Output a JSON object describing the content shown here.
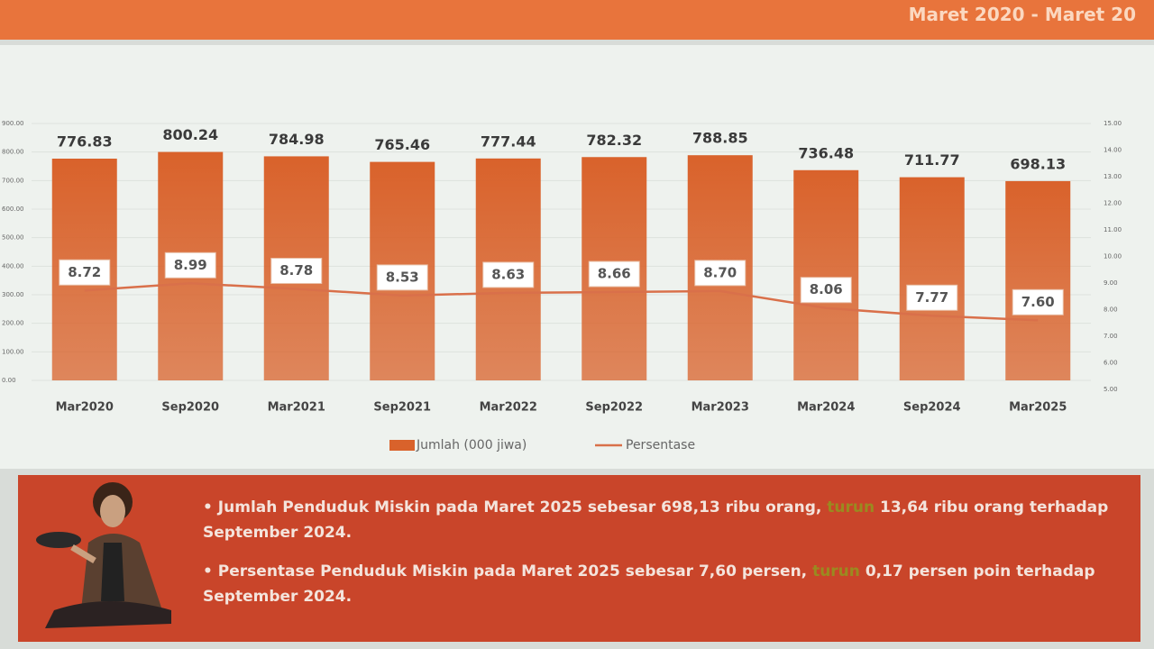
{
  "header": {
    "title": "Maret 2020 - Maret 20"
  },
  "chart_data": {
    "type": "bar-line",
    "categories": [
      "Mar2020",
      "Sep2020",
      "Mar2021",
      "Sep2021",
      "Mar2022",
      "Sep2022",
      "Mar2023",
      "Mar2024",
      "Sep2024",
      "Mar2025"
    ],
    "series": [
      {
        "name": "Jumlah (000 jiwa)",
        "color": "#d9622b",
        "values": [
          776.83,
          800.24,
          784.98,
          765.46,
          777.44,
          782.32,
          788.85,
          736.48,
          711.77,
          698.13
        ],
        "value_labels": [
          "776.83",
          "800.24",
          "784.98",
          "765.46",
          "777.44",
          "782.32",
          "788.85",
          "736.48",
          "711.77",
          "698.13"
        ]
      },
      {
        "name": "Persentase",
        "color": "#d9704a",
        "axis": "y2",
        "values": [
          8.72,
          8.99,
          8.78,
          8.53,
          8.63,
          8.66,
          8.7,
          8.06,
          7.77,
          7.6
        ],
        "value_labels": [
          "8.72",
          "8.99",
          "8.78",
          "8.53",
          "8.63",
          "8.66",
          "8.70",
          "8.06",
          "7.77",
          "7.60"
        ]
      }
    ],
    "ylim": [
      0,
      900
    ],
    "yticks": [
      {
        "value": 0,
        "label": "0.00"
      },
      {
        "value": 100,
        "label": "100.00"
      },
      {
        "value": 200,
        "label": "200.00"
      },
      {
        "value": 300,
        "label": "300.00"
      },
      {
        "value": 400,
        "label": "400.00"
      },
      {
        "value": 500,
        "label": "500.00"
      },
      {
        "value": 600,
        "label": "600.00"
      },
      {
        "value": 700,
        "label": "700.00"
      },
      {
        "value": 800,
        "label": "800.00"
      },
      {
        "value": 900,
        "label": "900.00"
      }
    ],
    "y2lim": [
      5,
      15
    ],
    "y2ticks": [
      {
        "value": 5,
        "label": "5.00"
      },
      {
        "value": 6,
        "label": "6.00"
      },
      {
        "value": 7,
        "label": "7.00"
      },
      {
        "value": 8,
        "label": "8.00"
      },
      {
        "value": 9,
        "label": "9.00"
      },
      {
        "value": 10,
        "label": "10.00"
      },
      {
        "value": 11,
        "label": "11.00"
      },
      {
        "value": 12,
        "label": "12.00"
      },
      {
        "value": 13,
        "label": "13.00"
      },
      {
        "value": 14,
        "label": "14.00"
      },
      {
        "value": 15,
        "label": "15.00"
      }
    ],
    "grid": true,
    "legend": "bottom"
  },
  "notes": [
    {
      "before": "Jumlah Penduduk Miskin pada Maret 2025 sebesar 698,13 ribu orang,",
      "highlight": "turun",
      "after": "13,64 ribu orang terhadap September 2024."
    },
    {
      "before": "Persentase Penduduk Miskin pada Maret 2025 sebesar 7,60 persen,",
      "highlight": "turun",
      "after": "0,17 persen poin terhadap September 2024."
    }
  ]
}
